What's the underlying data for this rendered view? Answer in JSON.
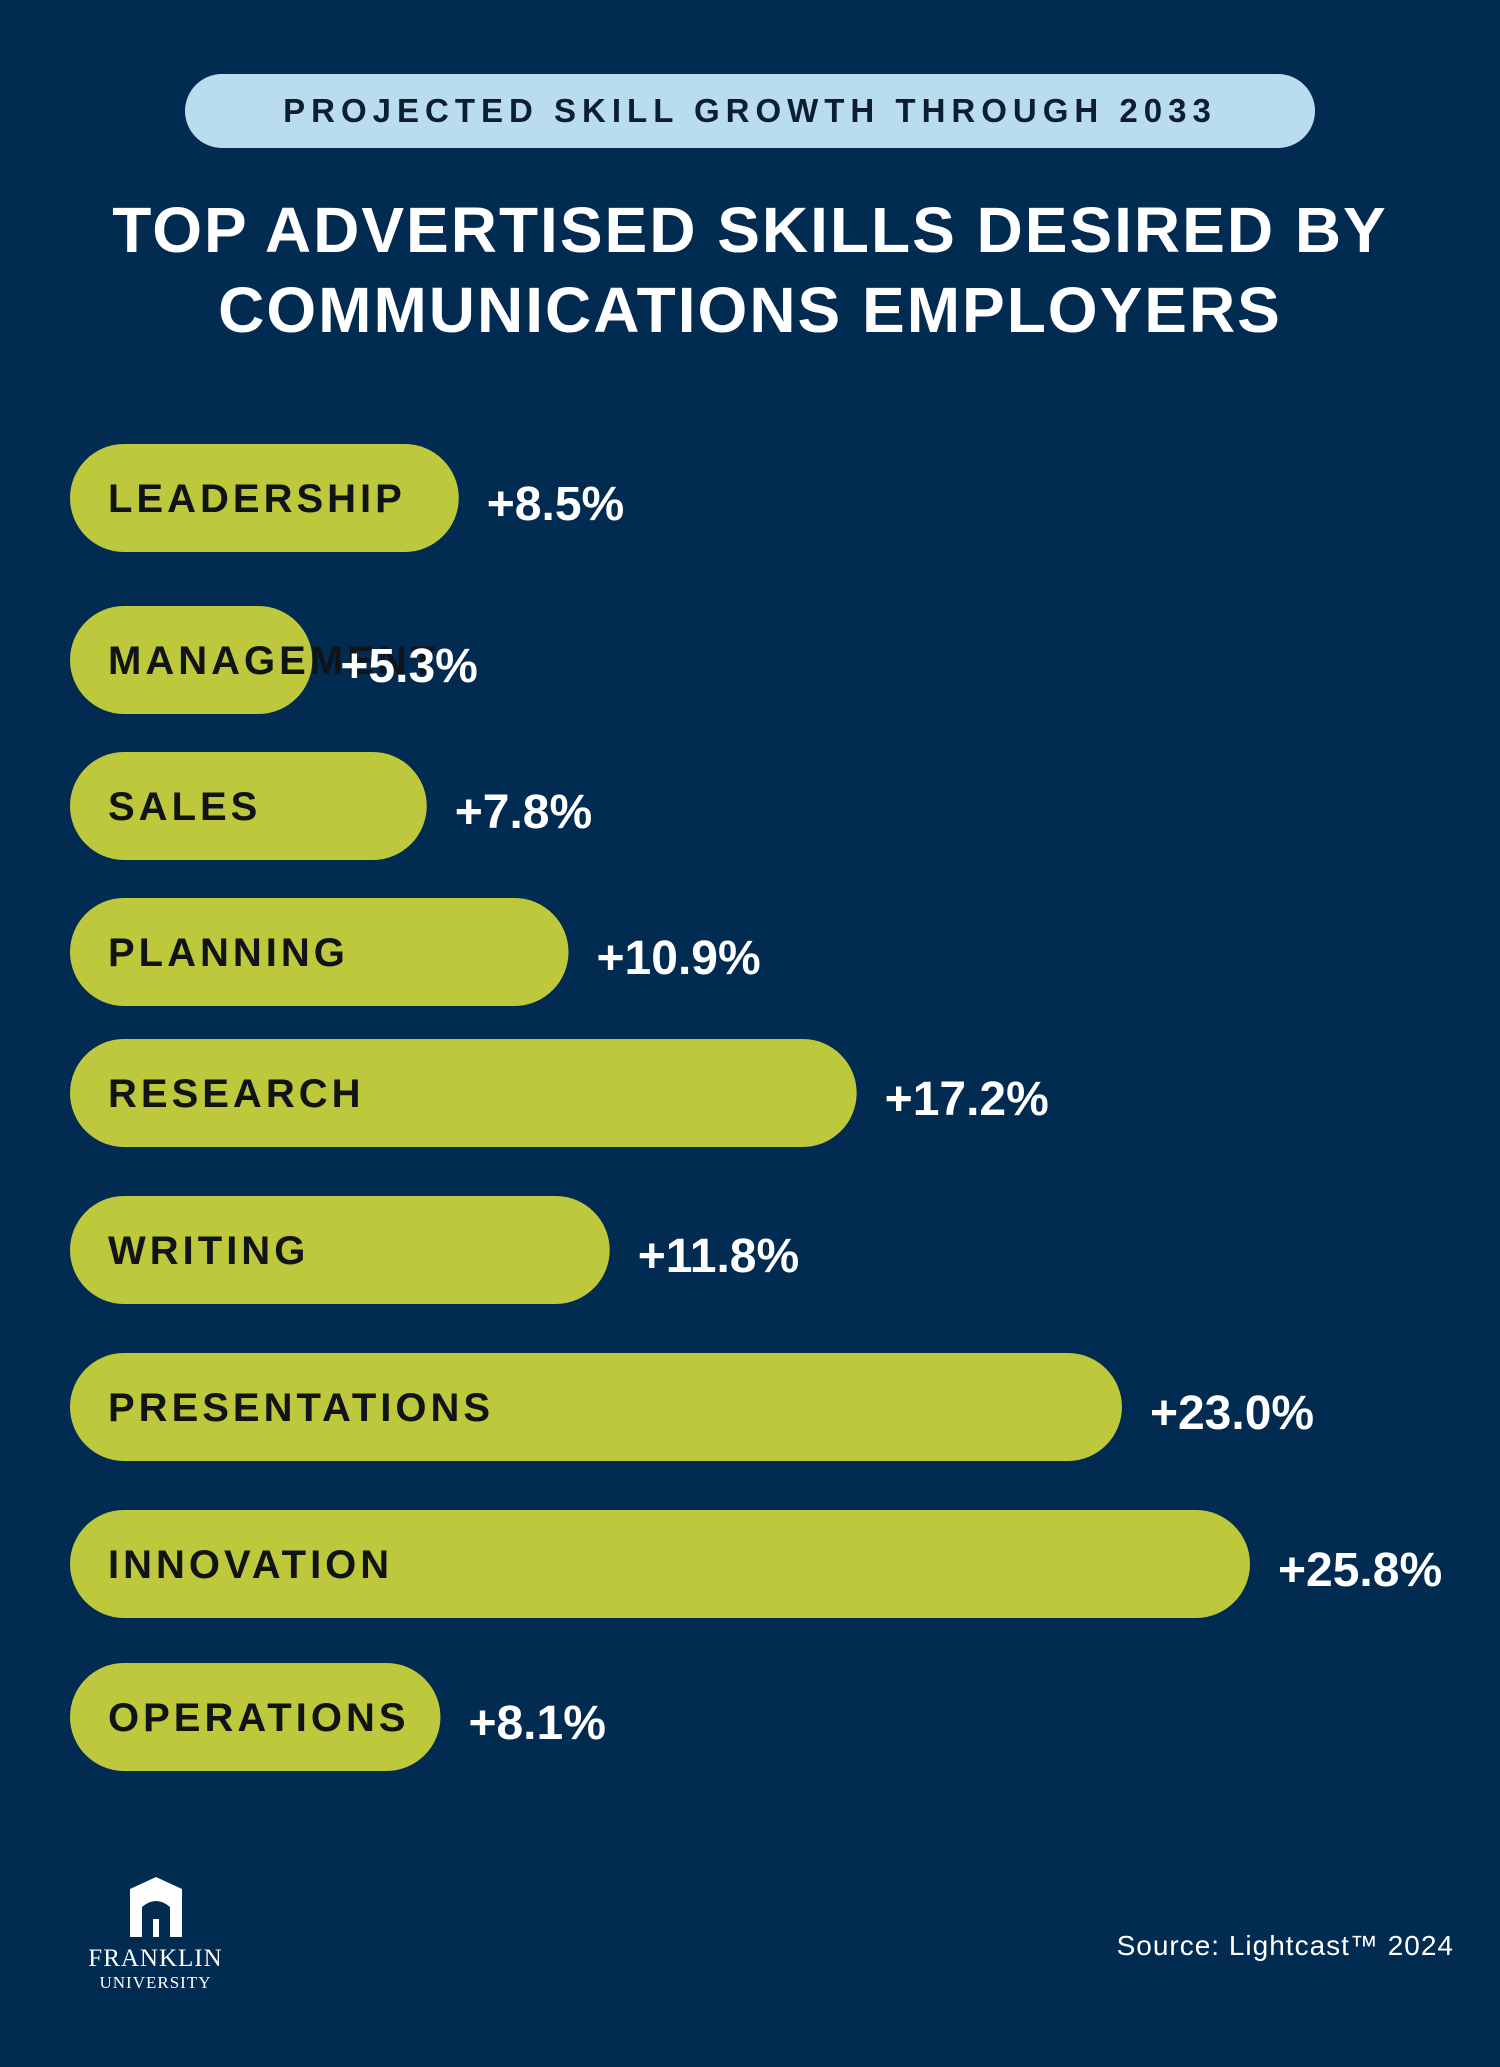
{
  "header": {
    "pill_text": "PROJECTED SKILL GROWTH THROUGH 2033",
    "title_line1": "TOP ADVERTISED SKILLS DESIRED BY",
    "title_line2": "COMMUNICATIONS EMPLOYERS"
  },
  "chart_data": {
    "type": "bar",
    "orientation": "horizontal",
    "categories": [
      "LEADERSHIP",
      "MANAGEMENT",
      "SALES",
      "PLANNING",
      "RESEARCH",
      "WRITING",
      "PRESENTATIONS",
      "INNOVATION",
      "OPERATIONS"
    ],
    "values": [
      8.5,
      5.3,
      7.8,
      10.9,
      17.2,
      11.8,
      23.0,
      25.8,
      8.1
    ],
    "value_labels": [
      "+8.5%",
      "+5.3%",
      "+7.8%",
      "+10.9%",
      "+17.2%",
      "+11.8%",
      "+23.0%",
      "+25.8%",
      "+8.1%"
    ],
    "unit": "%",
    "grid": false,
    "legend": "none"
  },
  "colors": {
    "background": "#022b52",
    "bar": "#bec83c",
    "pill": "#b9ddee",
    "text_light": "#ffffff",
    "text_dark": "#111417"
  },
  "logo": {
    "line1": "FRANKLIN",
    "line2": "UNIVERSITY"
  },
  "footer": {
    "source": "Source: Lightcast™ 2024"
  }
}
